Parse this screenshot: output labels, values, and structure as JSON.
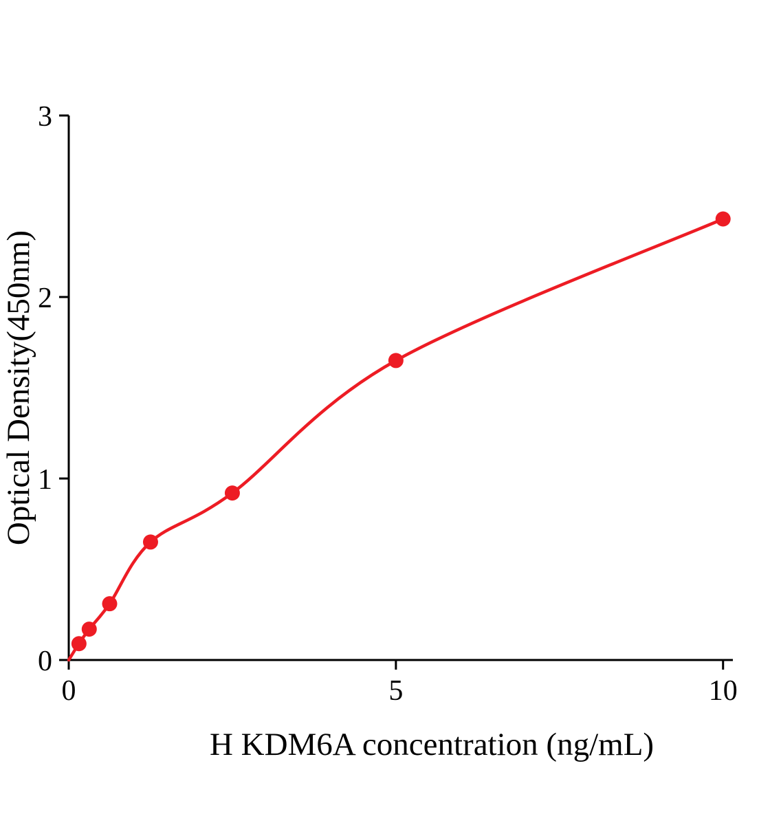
{
  "chart_data": {
    "type": "scatter",
    "title": "",
    "xlabel": "H KDM6A concentration (ng/mL)",
    "ylabel": "Optical Density(450nm)",
    "x": [
      0.156,
      0.313,
      0.625,
      1.25,
      2.5,
      5,
      10
    ],
    "y": [
      0.09,
      0.17,
      0.31,
      0.65,
      0.92,
      1.65,
      2.43
    ],
    "fit": {
      "type": "smooth-curve-through-points",
      "start": [
        0,
        0
      ]
    },
    "xlim": [
      0,
      10.15
    ],
    "ylim": [
      0,
      3
    ],
    "xticks": [
      0,
      5,
      10
    ],
    "yticks": [
      0,
      1,
      2,
      3
    ],
    "legend": "none",
    "grid": "off",
    "point_color": "#ed1c24",
    "line_color": "#ed1c24",
    "axis_color": "#000000",
    "background": "#ffffff"
  }
}
